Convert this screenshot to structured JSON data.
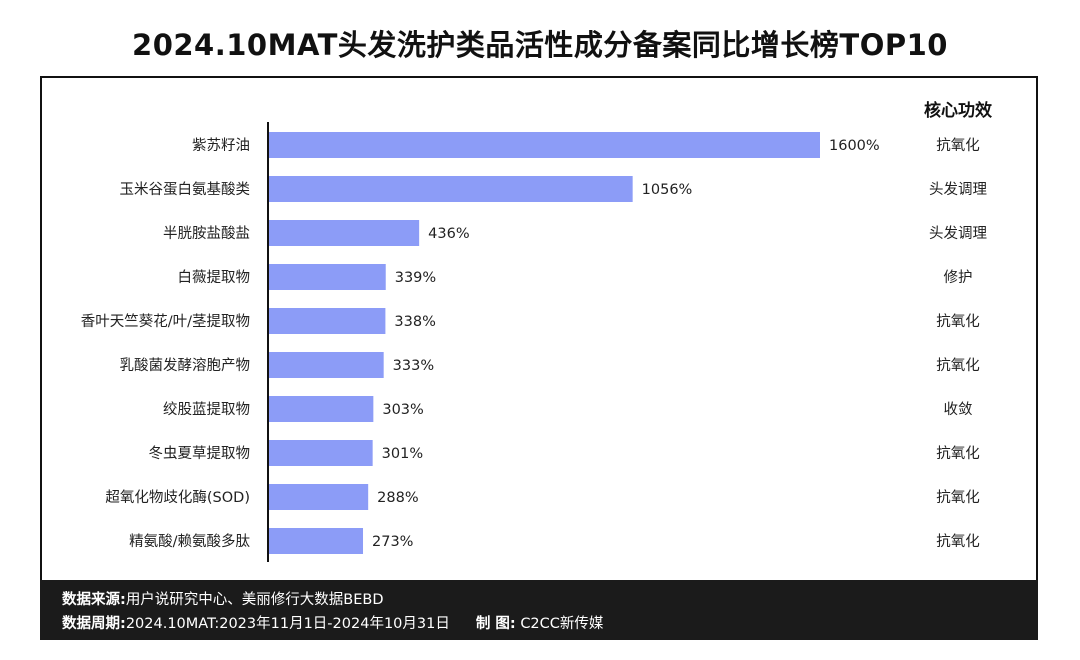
{
  "title": "2024.10MAT头发洗护类品活性成分备案同比增长榜TOP10",
  "effect_header": "核心功效",
  "effects": [
    "抗氧化",
    "头发调理",
    "头发调理",
    "修护",
    "抗氧化",
    "抗氧化",
    "收敛",
    "抗氧化",
    "抗氧化",
    "抗氧化"
  ],
  "colors": {
    "bar": "#8c9cf7",
    "axis": "#111111",
    "footer_bg": "#1b1b1b"
  },
  "chart_data": {
    "type": "bar",
    "orientation": "horizontal",
    "title": "2024.10MAT头发洗护类品活性成分备案同比增长榜TOP10",
    "categories": [
      "紫苏籽油",
      "玉米谷蛋白氨基酸类",
      "半胱胺盐酸盐",
      "白薇提取物",
      "香叶天竺葵花/叶/茎提取物",
      "乳酸菌发酵溶胞产物",
      "绞股蓝提取物",
      "冬虫夏草提取物",
      "超氧化物歧化酶(SOD)",
      "精氨酸/赖氨酸多肽"
    ],
    "values": [
      1600,
      1056,
      436,
      339,
      338,
      333,
      303,
      301,
      288,
      273
    ],
    "value_labels": [
      "1600%",
      "1056%",
      "436%",
      "339%",
      "338%",
      "333%",
      "303%",
      "301%",
      "288%",
      "273%"
    ],
    "xlim": [
      0,
      1600
    ],
    "unit": "%",
    "grid": false
  },
  "footer": {
    "source_label": "数据来源:",
    "source_text": "用户说研究中心、美丽修行大数据BEBD",
    "period_label": "数据周期:",
    "period_text": "2024.10MAT:2023年11月1日-2024年10月31日",
    "maker_label": "制 图:",
    "maker_text": "C2CC新传媒"
  }
}
